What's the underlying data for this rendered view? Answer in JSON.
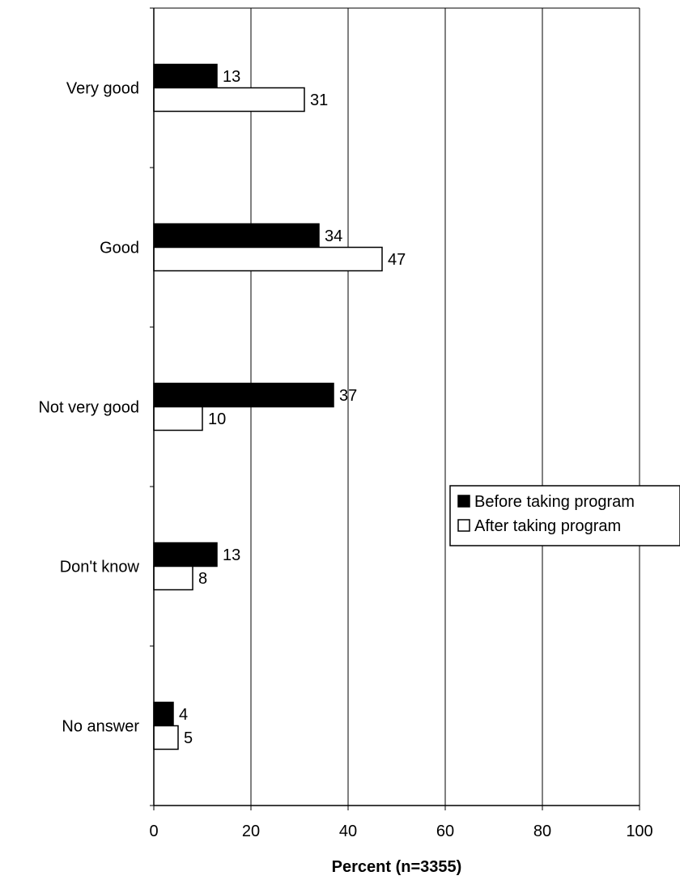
{
  "chart_data": {
    "type": "bar",
    "orientation": "horizontal",
    "categories": [
      "Very good",
      "Good",
      "Not very good",
      "Don't know",
      "No answer"
    ],
    "series": [
      {
        "name": "Before taking program",
        "values": [
          13,
          34,
          37,
          13,
          4
        ],
        "color": "#000000"
      },
      {
        "name": "After taking program",
        "values": [
          31,
          47,
          10,
          8,
          5
        ],
        "color": "#ffffff"
      }
    ],
    "xlabel": "Percent (n=3355)",
    "ylabel": "",
    "title": "",
    "xlim": [
      0,
      100
    ],
    "xticks": [
      0,
      20,
      40,
      60,
      80,
      100
    ],
    "grid": "vertical",
    "legend_position": "right"
  }
}
